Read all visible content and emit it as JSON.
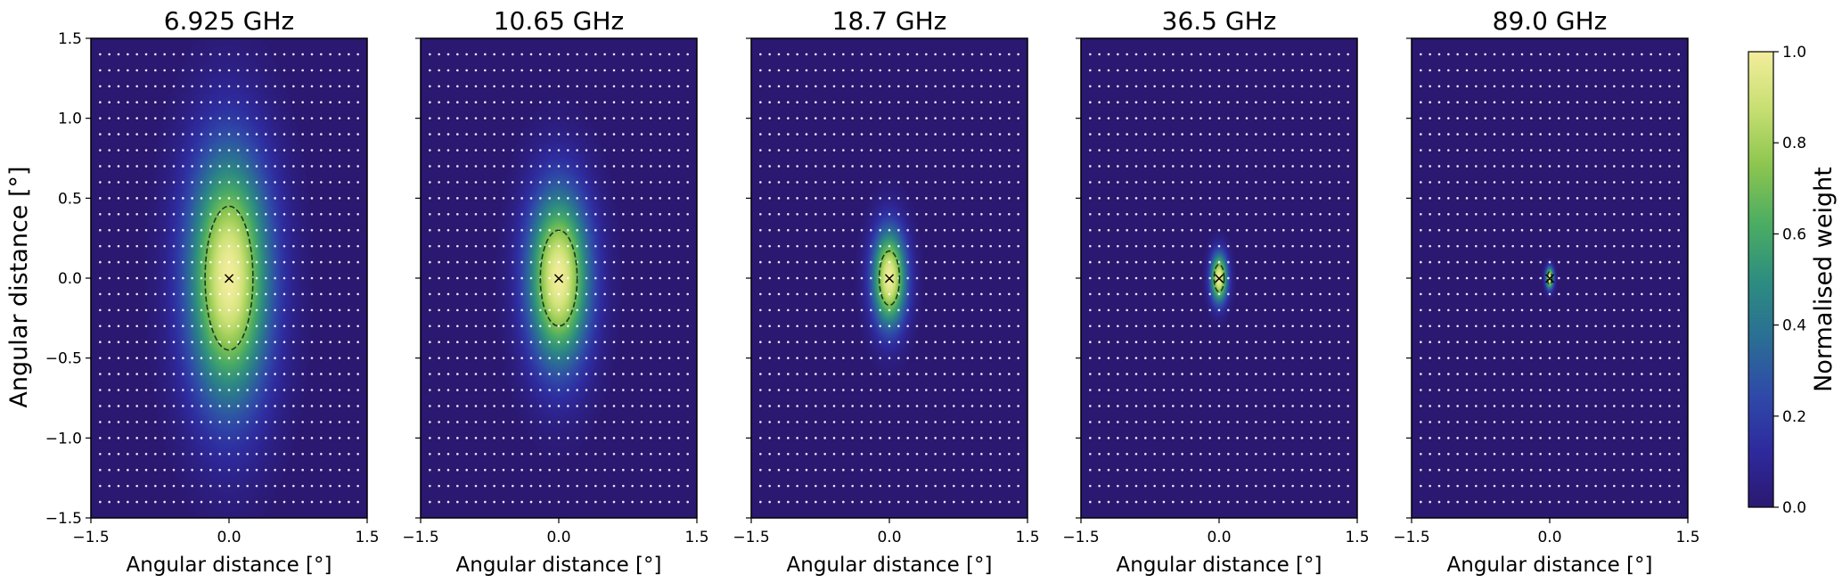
{
  "chart_data": {
    "type": "heatmap",
    "shared_y_axis": true,
    "panels": [
      {
        "title": "6.925 GHz",
        "fwhm_deg": [
          0.73,
          1.3
        ],
        "contour_semi_axes_deg": [
          0.26,
          0.45
        ]
      },
      {
        "title": "10.65 GHz",
        "fwhm_deg": [
          0.55,
          0.9
        ],
        "contour_semi_axes_deg": [
          0.2,
          0.3
        ]
      },
      {
        "title": "18.7 GHz",
        "fwhm_deg": [
          0.3,
          0.5
        ],
        "contour_semi_axes_deg": [
          0.11,
          0.17
        ]
      },
      {
        "title": "36.5 GHz",
        "fwhm_deg": [
          0.15,
          0.25
        ],
        "contour_semi_axes_deg": [
          0.055,
          0.085
        ]
      },
      {
        "title": "89.0 GHz",
        "fwhm_deg": [
          0.07,
          0.11
        ],
        "contour_semi_axes_deg": [
          0.025,
          0.04
        ]
      }
    ],
    "xlabel": "Angular distance [°]",
    "ylabel": "Angular distance [°]",
    "xlim": [
      -1.5,
      1.5
    ],
    "ylim": [
      -1.5,
      1.5
    ],
    "xticks": [
      -1.5,
      0.0,
      1.5
    ],
    "xtick_labels": [
      "−1.5",
      "0.0",
      "1.5"
    ],
    "yticks": [
      -1.5,
      -1.0,
      -0.5,
      0.0,
      0.5,
      1.0,
      1.5
    ],
    "ytick_labels": [
      "−1.5",
      "−1.0",
      "−0.5",
      "0.0",
      "0.5",
      "1.0",
      "1.5"
    ],
    "sample_grid": {
      "x_start": -1.4,
      "x_step": 0.1,
      "x_count": 29,
      "y_start": -1.4,
      "y_step": 0.1,
      "y_count": 29
    },
    "center_marker": {
      "x": 0.0,
      "y": 0.0,
      "symbol": "×"
    },
    "colorbar": {
      "label": "Normalised weight",
      "range": [
        0.0,
        1.0
      ],
      "ticks": [
        0.0,
        0.2,
        0.4,
        0.6,
        0.8,
        1.0
      ],
      "tick_labels": [
        "0.0",
        "0.2",
        "0.4",
        "0.6",
        "0.8",
        "1.0"
      ],
      "colormap": [
        "#2b1870",
        "#2e2a9e",
        "#2f4ba8",
        "#2a6f94",
        "#2d8e7f",
        "#4cad62",
        "#8cc54f",
        "#c7df72",
        "#f3ed9c"
      ]
    },
    "legend": "none",
    "grid": false
  }
}
